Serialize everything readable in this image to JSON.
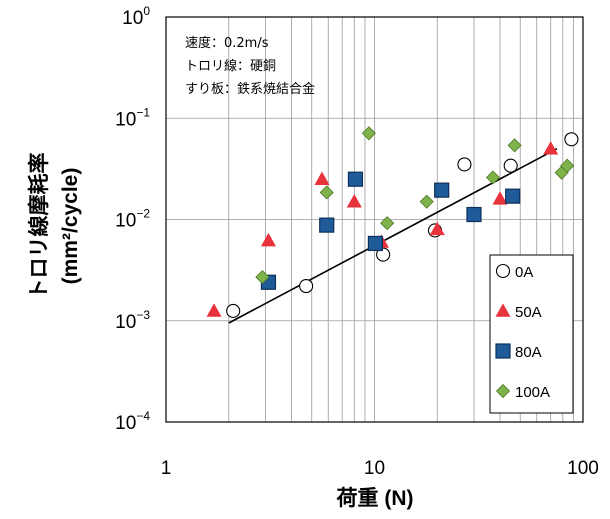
{
  "chart_data": {
    "type": "scatter",
    "title": "",
    "xlabel": "荷重 (N)",
    "ylabel_line1": "トロリ線摩耗率",
    "ylabel_line2": "(mm²/cycle)",
    "x_scale": "log",
    "y_scale": "log",
    "xlim": [
      1,
      100
    ],
    "ylim": [
      0.0001,
      1
    ],
    "x_ticks": [
      {
        "value": 1,
        "label": "1"
      },
      {
        "value": 10,
        "label": "10"
      },
      {
        "value": 100,
        "label": "100"
      }
    ],
    "y_ticks": [
      {
        "value": 1,
        "base": "10",
        "exp": "0"
      },
      {
        "value": 0.1,
        "base": "10",
        "exp": "−1"
      },
      {
        "value": 0.01,
        "base": "10",
        "exp": "−2"
      },
      {
        "value": 0.001,
        "base": "10",
        "exp": "−3"
      },
      {
        "value": 0.0001,
        "base": "10",
        "exp": "−4"
      }
    ],
    "grid": true,
    "legend_position": "bottom-right",
    "conditions": [
      "速度：0.2m/s",
      "トロリ線：硬銅",
      "すり板：鉄系焼結合金"
    ],
    "series": [
      {
        "name": "0A",
        "marker": "circle",
        "color": "#ffffff",
        "stroke": "#000000",
        "points": [
          [
            2.1,
            0.00125
          ],
          [
            4.7,
            0.0022
          ],
          [
            11.0,
            0.0045
          ],
          [
            19.5,
            0.0078
          ],
          [
            27.0,
            0.035
          ],
          [
            45.0,
            0.034
          ],
          [
            88.0,
            0.062
          ]
        ]
      },
      {
        "name": "50A",
        "marker": "triangle",
        "color": "#e8323c",
        "stroke": "#e8323c",
        "points": [
          [
            1.7,
            0.00125
          ],
          [
            3.1,
            0.0062
          ],
          [
            5.6,
            0.025
          ],
          [
            8.0,
            0.015
          ],
          [
            10.8,
            0.006
          ],
          [
            20.0,
            0.008
          ],
          [
            40.0,
            0.016
          ],
          [
            70.0,
            0.05
          ]
        ]
      },
      {
        "name": "80A",
        "marker": "square",
        "color": "#1f5a99",
        "stroke": "#0e2f5a",
        "points": [
          [
            3.1,
            0.0024
          ],
          [
            5.9,
            0.0088
          ],
          [
            8.1,
            0.025
          ],
          [
            10.1,
            0.0058
          ],
          [
            21.0,
            0.0195
          ],
          [
            30.0,
            0.0112
          ],
          [
            46.0,
            0.017
          ]
        ]
      },
      {
        "name": "100A",
        "marker": "diamond",
        "color": "#7fb24a",
        "stroke": "#4e7a28",
        "points": [
          [
            2.9,
            0.0027
          ],
          [
            5.9,
            0.0185
          ],
          [
            9.4,
            0.071
          ],
          [
            11.5,
            0.0092
          ],
          [
            17.8,
            0.015
          ],
          [
            37.0,
            0.026
          ],
          [
            47.0,
            0.054
          ],
          [
            79.0,
            0.029
          ],
          [
            84.0,
            0.034
          ]
        ]
      }
    ],
    "trendline": {
      "points": [
        [
          2.0,
          0.00095
        ],
        [
          75.0,
          0.05
        ]
      ],
      "color": "#000000"
    }
  }
}
